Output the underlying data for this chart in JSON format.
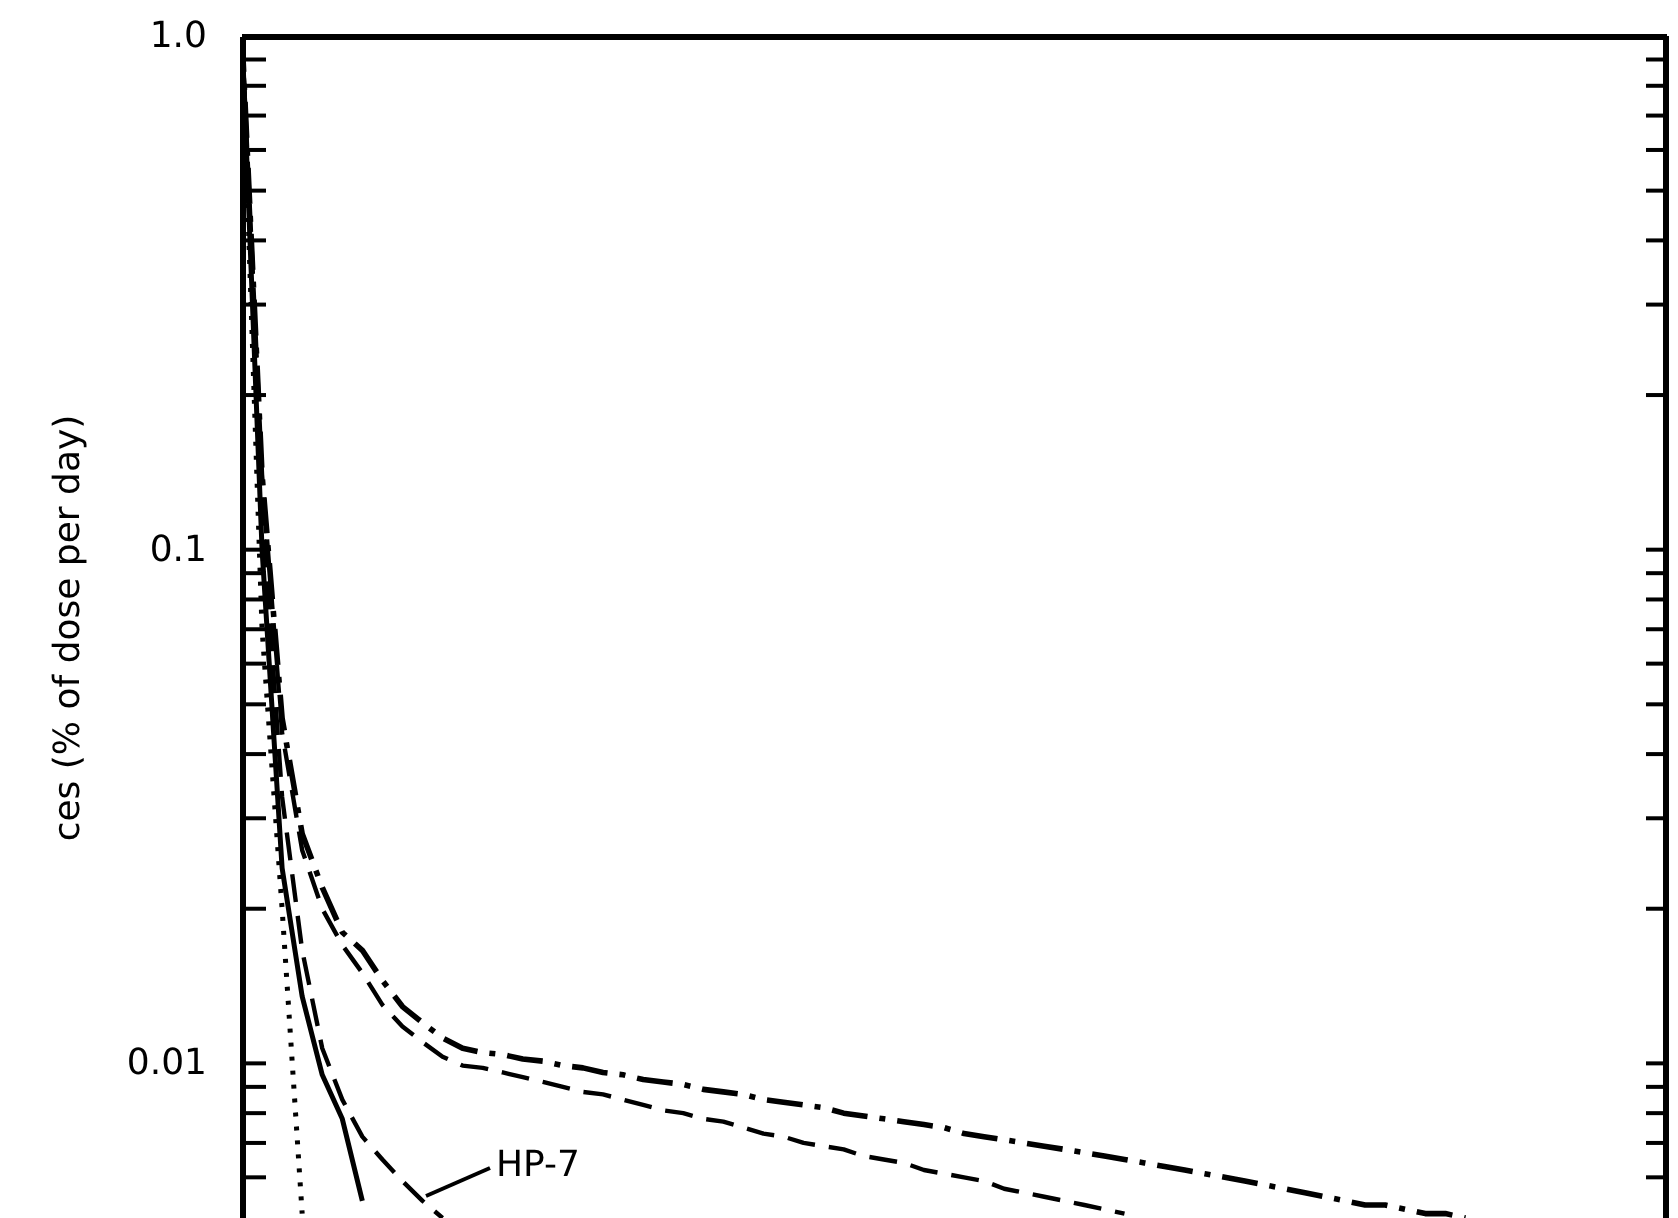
{
  "chart_data": {
    "type": "line",
    "ylabel": "ces   (% of dose per day)",
    "log": true,
    "ylim": [
      0.005,
      1
    ],
    "yticks": [
      {
        "value": 1,
        "label": "1.0"
      },
      {
        "value": 0.9,
        "label": null
      },
      {
        "value": 0.8,
        "label": null
      },
      {
        "value": 0.7,
        "label": null
      },
      {
        "value": 0.6,
        "label": null
      },
      {
        "value": 0.5,
        "label": null
      },
      {
        "value": 0.4,
        "label": null
      },
      {
        "value": 0.3,
        "label": null
      },
      {
        "value": 0.2,
        "label": null
      },
      {
        "value": 0.1,
        "label": "0.1"
      },
      {
        "value": 0.09,
        "label": null
      },
      {
        "value": 0.08,
        "label": null
      },
      {
        "value": 0.07,
        "label": null
      },
      {
        "value": 0.06,
        "label": null
      },
      {
        "value": 0.05,
        "label": null
      },
      {
        "value": 0.04,
        "label": null
      },
      {
        "value": 0.03,
        "label": null
      },
      {
        "value": 0.02,
        "label": null
      },
      {
        "value": 0.01,
        "label": "0.01"
      },
      {
        "value": 0.009,
        "label": null
      },
      {
        "value": 0.008,
        "label": null
      },
      {
        "value": 0.007,
        "label": null
      },
      {
        "value": 0.006,
        "label": null
      }
    ],
    "categories": [
      null,
      null,
      null,
      null,
      null,
      null,
      null,
      null,
      null,
      null,
      null,
      null,
      null,
      null,
      null,
      null,
      null,
      null,
      null,
      null,
      null,
      null,
      null,
      null,
      null,
      null,
      null,
      null,
      null,
      null,
      null,
      null,
      null,
      null,
      null,
      null,
      null,
      null,
      null,
      null,
      null,
      null,
      null,
      null,
      null,
      null,
      null,
      null,
      null,
      null,
      null,
      null,
      null,
      null,
      null,
      null,
      null,
      null,
      null,
      null,
      null,
      null,
      null,
      null,
      null,
      null,
      null,
      null,
      null,
      null,
      null,
      null
    ],
    "grid": false,
    "marker": "none",
    "annotations": [
      "HP-7"
    ],
    "series": [
      {
        "color": "#000000",
        "line_style": "dashdot",
        "values": [
          1.0,
          0.14,
          0.047,
          0.028,
          0.022,
          0.018,
          0.0166,
          0.0145,
          0.0129,
          0.012,
          0.0112,
          0.0107,
          0.0105,
          0.0104,
          0.0102,
          0.0101,
          0.0099,
          0.0098,
          0.0096,
          0.0095,
          0.0093,
          0.0092,
          0.0091,
          0.0089,
          0.0088,
          0.0087,
          0.0085,
          0.0084,
          0.0083,
          0.0082,
          0.008,
          0.0079,
          0.0078,
          0.0077,
          0.0076,
          0.0075,
          0.0073,
          0.0072,
          0.0071,
          0.007,
          0.0069,
          0.0068,
          0.0067,
          0.0066,
          0.0065,
          0.0064,
          0.0063,
          0.0062,
          0.0061,
          0.006,
          0.0059,
          0.0058,
          0.0057,
          0.0056,
          0.0055,
          0.0054,
          0.0053,
          0.0053,
          0.0052,
          0.0051,
          0.0051,
          0.005,
          null,
          null,
          null,
          null,
          null,
          null,
          null,
          null,
          null,
          null
        ]
      },
      {
        "color": "#000000",
        "line_style": "dashed",
        "values": [
          1.0,
          0.14,
          0.044,
          0.026,
          0.02,
          0.017,
          0.015,
          0.013,
          0.0118,
          0.011,
          0.0103,
          0.0099,
          0.0098,
          0.0096,
          0.0094,
          0.0092,
          0.009,
          0.0088,
          0.0087,
          0.0085,
          0.0083,
          0.0081,
          0.008,
          0.0078,
          0.0077,
          0.0075,
          0.0073,
          0.0072,
          0.007,
          0.0069,
          0.0068,
          0.0066,
          0.0065,
          0.0064,
          0.0062,
          0.0061,
          0.006,
          0.0059,
          0.0057,
          0.0056,
          0.0055,
          0.0054,
          0.0053,
          0.0052,
          0.0051,
          null,
          null,
          null,
          null,
          null,
          null,
          null,
          null,
          null,
          null,
          null,
          null,
          null,
          null,
          null,
          null,
          null,
          null,
          null,
          null,
          null,
          null,
          null,
          null,
          null,
          null,
          null
        ]
      },
      {
        "color": "#000000",
        "line_style": "dashed",
        "values": [
          1.0,
          0.12,
          0.033,
          0.0166,
          0.0107,
          0.0085,
          0.0072,
          0.0065,
          0.0059,
          0.0054,
          0.005,
          null,
          null,
          null,
          null,
          null,
          null,
          null,
          null,
          null,
          null,
          null,
          null,
          null,
          null,
          null,
          null,
          null,
          null,
          null,
          null,
          null,
          null,
          null,
          null,
          null,
          null,
          null,
          null,
          null,
          null,
          null,
          null,
          null,
          null,
          null,
          null,
          null,
          null,
          null,
          null,
          null,
          null,
          null,
          null,
          null,
          null,
          null,
          null,
          null,
          null,
          null,
          null,
          null,
          null,
          null,
          null,
          null,
          null,
          null,
          null,
          null
        ]
      },
      {
        "color": "#000000",
        "line_style": "solid",
        "values": [
          1.0,
          0.1,
          0.024,
          0.0135,
          0.0095,
          0.0078,
          0.0054,
          null,
          null,
          null,
          null,
          null,
          null,
          null,
          null,
          null,
          null,
          null,
          null,
          null,
          null,
          null,
          null,
          null,
          null,
          null,
          null,
          null,
          null,
          null,
          null,
          null,
          null,
          null,
          null,
          null,
          null,
          null,
          null,
          null,
          null,
          null,
          null,
          null,
          null,
          null,
          null,
          null,
          null,
          null,
          null,
          null,
          null,
          null,
          null,
          null,
          null,
          null,
          null,
          null,
          null,
          null,
          null,
          null,
          null,
          null,
          null,
          null,
          null,
          null,
          null,
          null
        ]
      },
      {
        "color": "#000000",
        "line_style": "dotted",
        "values": [
          1.0,
          0.07,
          0.02,
          0.0051,
          null,
          null,
          null,
          null,
          null,
          null,
          null,
          null,
          null,
          null,
          null,
          null,
          null,
          null,
          null,
          null,
          null,
          null,
          null,
          null,
          null,
          null,
          null,
          null,
          null,
          null,
          null,
          null,
          null,
          null,
          null,
          null,
          null,
          null,
          null,
          null,
          null,
          null,
          null,
          null,
          null,
          null,
          null,
          null,
          null,
          null,
          null,
          null,
          null,
          null,
          null,
          null,
          null,
          null,
          null,
          null,
          null,
          null,
          null,
          null,
          null,
          null,
          null,
          null,
          null,
          null,
          null,
          null
        ]
      }
    ]
  }
}
